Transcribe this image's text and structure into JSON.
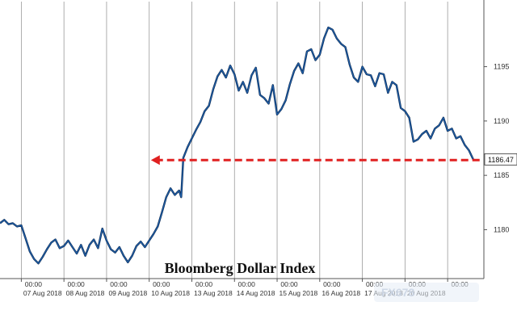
{
  "chart_data": {
    "type": "line",
    "title": "Bloomberg Dollar Index",
    "xlabel": "",
    "ylabel": "",
    "ylim": [
      1175.5,
      1199.5
    ],
    "y_ticks": [
      1180,
      1185,
      1190,
      1195
    ],
    "y_tick_labels": [
      "1180",
      "1185",
      "1190",
      "1195"
    ],
    "x_tick_time_label": "00:00",
    "x_date_labels": [
      "07 Aug 2018",
      "08 Aug 2018",
      "09 Aug 2018",
      "10 Aug 2018",
      "13 Aug 2018",
      "14 Aug 2018",
      "15 Aug 2018",
      "16 Aug 2018",
      "17 Aug 2018",
      "20 Aug 2018"
    ],
    "x_date_positions": [
      0.5,
      1.5,
      2.5,
      3.5,
      4.5,
      5.5,
      6.5,
      7.5,
      8.5,
      9.5
    ],
    "x_time_ticks": [
      0,
      1,
      2,
      3,
      4,
      5,
      6,
      7,
      8,
      9,
      10
    ],
    "xlim": [
      -0.5,
      10.85
    ],
    "grid": "vertical",
    "line_color": "#1f5fa8",
    "last_value_label": "1186.47",
    "annotation_arrow": {
      "from": 10.75,
      "to": 3.04,
      "y": 1186.4,
      "color": "#e02020",
      "style": "dashed"
    },
    "series": [
      {
        "points": [
          [
            -0.5,
            1180.6
          ],
          [
            -0.4,
            1180.9
          ],
          [
            -0.3,
            1180.5
          ],
          [
            -0.2,
            1180.6
          ],
          [
            -0.1,
            1180.3
          ],
          [
            0.0,
            1180.4
          ],
          [
            0.1,
            1179.2
          ],
          [
            0.2,
            1178.0
          ],
          [
            0.3,
            1177.3
          ],
          [
            0.4,
            1176.9
          ],
          [
            0.5,
            1177.5
          ],
          [
            0.6,
            1178.2
          ],
          [
            0.7,
            1178.8
          ],
          [
            0.8,
            1179.1
          ],
          [
            0.9,
            1178.3
          ],
          [
            1.0,
            1178.5
          ],
          [
            1.1,
            1179.0
          ],
          [
            1.2,
            1178.4
          ],
          [
            1.3,
            1177.8
          ],
          [
            1.4,
            1178.6
          ],
          [
            1.5,
            1177.6
          ],
          [
            1.6,
            1178.6
          ],
          [
            1.7,
            1179.1
          ],
          [
            1.8,
            1178.3
          ],
          [
            1.9,
            1180.1
          ],
          [
            2.0,
            1179.0
          ],
          [
            2.1,
            1178.2
          ],
          [
            2.2,
            1177.9
          ],
          [
            2.3,
            1178.4
          ],
          [
            2.4,
            1177.6
          ],
          [
            2.5,
            1177.0
          ],
          [
            2.6,
            1177.6
          ],
          [
            2.7,
            1178.5
          ],
          [
            2.8,
            1178.9
          ],
          [
            2.9,
            1178.4
          ],
          [
            3.0,
            1179.0
          ],
          [
            3.1,
            1179.6
          ],
          [
            3.2,
            1180.3
          ],
          [
            3.3,
            1181.6
          ],
          [
            3.4,
            1183.0
          ],
          [
            3.5,
            1183.8
          ],
          [
            3.6,
            1183.2
          ],
          [
            3.7,
            1183.6
          ],
          [
            3.75,
            1183.0
          ],
          [
            3.8,
            1186.6
          ],
          [
            3.9,
            1187.6
          ],
          [
            4.0,
            1188.4
          ],
          [
            4.1,
            1189.2
          ],
          [
            4.2,
            1189.9
          ],
          [
            4.3,
            1190.9
          ],
          [
            4.4,
            1191.4
          ],
          [
            4.5,
            1192.9
          ],
          [
            4.6,
            1194.1
          ],
          [
            4.7,
            1194.7
          ],
          [
            4.8,
            1194.0
          ],
          [
            4.9,
            1195.1
          ],
          [
            5.0,
            1194.3
          ],
          [
            5.1,
            1192.8
          ],
          [
            5.2,
            1193.6
          ],
          [
            5.3,
            1192.6
          ],
          [
            5.4,
            1194.2
          ],
          [
            5.5,
            1194.9
          ],
          [
            5.6,
            1192.4
          ],
          [
            5.7,
            1192.1
          ],
          [
            5.8,
            1191.6
          ],
          [
            5.9,
            1193.3
          ],
          [
            6.0,
            1190.6
          ],
          [
            6.1,
            1191.1
          ],
          [
            6.2,
            1191.9
          ],
          [
            6.3,
            1193.4
          ],
          [
            6.4,
            1194.6
          ],
          [
            6.5,
            1195.3
          ],
          [
            6.6,
            1194.4
          ],
          [
            6.7,
            1196.4
          ],
          [
            6.8,
            1196.6
          ],
          [
            6.9,
            1195.6
          ],
          [
            7.0,
            1196.1
          ],
          [
            7.1,
            1197.6
          ],
          [
            7.2,
            1198.6
          ],
          [
            7.3,
            1198.4
          ],
          [
            7.4,
            1197.6
          ],
          [
            7.5,
            1197.1
          ],
          [
            7.6,
            1196.8
          ],
          [
            7.7,
            1195.2
          ],
          [
            7.8,
            1194.0
          ],
          [
            7.9,
            1193.6
          ],
          [
            8.0,
            1195.0
          ],
          [
            8.1,
            1194.3
          ],
          [
            8.2,
            1194.2
          ],
          [
            8.3,
            1193.2
          ],
          [
            8.4,
            1194.4
          ],
          [
            8.5,
            1194.3
          ],
          [
            8.6,
            1192.6
          ],
          [
            8.7,
            1193.6
          ],
          [
            8.8,
            1193.3
          ],
          [
            8.9,
            1191.2
          ],
          [
            9.0,
            1190.9
          ],
          [
            9.1,
            1190.3
          ],
          [
            9.2,
            1188.1
          ],
          [
            9.3,
            1188.3
          ],
          [
            9.4,
            1188.8
          ],
          [
            9.5,
            1189.1
          ],
          [
            9.6,
            1188.4
          ],
          [
            9.7,
            1189.3
          ],
          [
            9.8,
            1189.6
          ],
          [
            9.9,
            1190.3
          ],
          [
            10.0,
            1189.1
          ],
          [
            10.1,
            1189.3
          ],
          [
            10.2,
            1188.4
          ],
          [
            10.3,
            1188.6
          ],
          [
            10.4,
            1187.8
          ],
          [
            10.5,
            1187.3
          ],
          [
            10.6,
            1186.47
          ]
        ]
      }
    ]
  },
  "watermark": {
    "text": "FX678"
  }
}
